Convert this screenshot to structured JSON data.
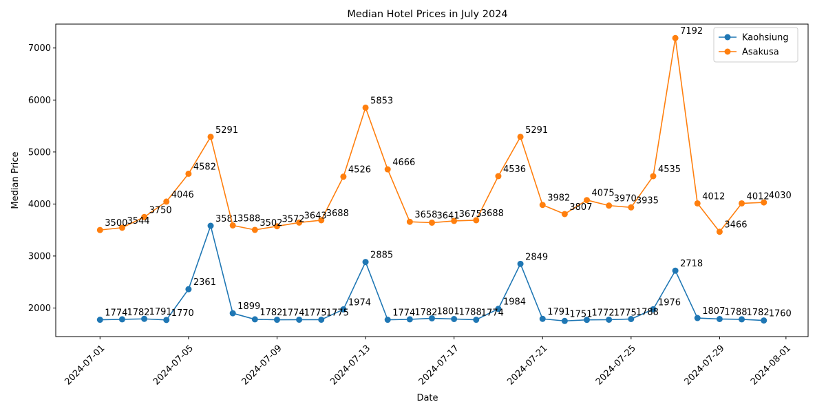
{
  "chart_data": {
    "type": "line",
    "title": "Median Hotel Prices in July 2024",
    "xlabel": "Date",
    "ylabel": "Median Price",
    "x": [
      "2024-07-01",
      "2024-07-02",
      "2024-07-03",
      "2024-07-04",
      "2024-07-05",
      "2024-07-06",
      "2024-07-07",
      "2024-07-08",
      "2024-07-09",
      "2024-07-10",
      "2024-07-11",
      "2024-07-12",
      "2024-07-13",
      "2024-07-14",
      "2024-07-15",
      "2024-07-16",
      "2024-07-17",
      "2024-07-18",
      "2024-07-19",
      "2024-07-20",
      "2024-07-21",
      "2024-07-22",
      "2024-07-23",
      "2024-07-24",
      "2024-07-25",
      "2024-07-26",
      "2024-07-27",
      "2024-07-28",
      "2024-07-29",
      "2024-07-30",
      "2024-07-31"
    ],
    "xlim": [
      "2024-06-29",
      "2024-08-02"
    ],
    "xticks": [
      "2024-07-01",
      "2024-07-05",
      "2024-07-09",
      "2024-07-13",
      "2024-07-17",
      "2024-07-21",
      "2024-07-25",
      "2024-07-29",
      "2024-08-01"
    ],
    "ylim": [
      1450,
      7460
    ],
    "yticks": [
      2000,
      3000,
      4000,
      5000,
      6000,
      7000
    ],
    "grid": false,
    "legend_position": "top-right",
    "series": [
      {
        "name": "Kaohsiung",
        "color": "#1f77b4",
        "values": [
          1774,
          1782,
          1791,
          1770,
          2361,
          3581,
          1899,
          1782,
          1774,
          1775,
          1775,
          1974,
          2885,
          1774,
          1782,
          1801,
          1788,
          1774,
          1984,
          2849,
          1791,
          1751,
          1772,
          1775,
          1788,
          1976,
          2718,
          1807,
          1788,
          1782,
          1760
        ]
      },
      {
        "name": "Asakusa",
        "color": "#ff7f0e",
        "values": [
          3500,
          3544,
          3750,
          4046,
          4582,
          5291,
          3588,
          3502,
          3572,
          3643,
          3688,
          4526,
          5853,
          4666,
          3658,
          3641,
          3675,
          3688,
          4536,
          5291,
          3982,
          3807,
          4075,
          3970,
          3935,
          4535,
          7192,
          4012,
          3466,
          4012,
          4030
        ]
      }
    ]
  }
}
